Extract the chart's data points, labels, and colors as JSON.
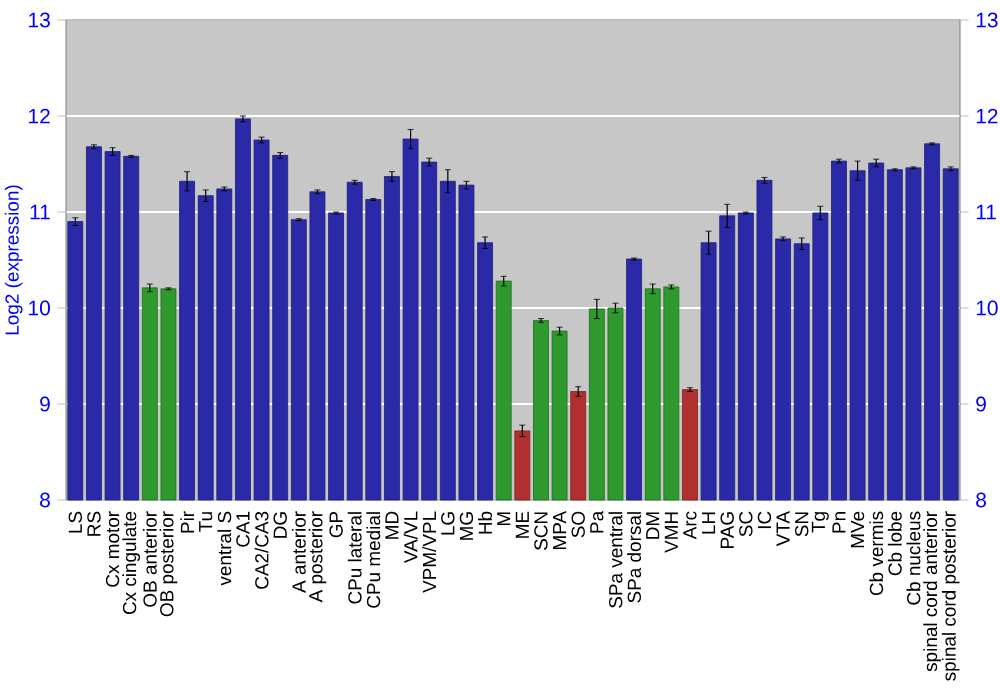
{
  "chart_data": {
    "type": "bar",
    "ylabel": "Log2 (expression)",
    "categories": [
      "LS",
      "RS",
      "Cx motor",
      "Cx cingulate",
      "OB anterior",
      "OB posterior",
      "Pir",
      "Tu",
      "ventral S",
      "CA1",
      "CA2/CA3",
      "DG",
      "A anterior",
      "A posterior",
      "GP",
      "CPu lateral",
      "CPu medial",
      "MD",
      "VA/VL",
      "VPM/VPL",
      "LG",
      "MG",
      "Hb",
      "M",
      "ME",
      "SCN",
      "MPA",
      "SO",
      "Pa",
      "SPa ventral",
      "SPa dorsal",
      "DM",
      "VMH",
      "Arc",
      "LH",
      "PAG",
      "SC",
      "IC",
      "VTA",
      "SN",
      "Tg",
      "Pn",
      "MVe",
      "Cb vermis",
      "Cb lobe",
      "Cb nucleus",
      "spinal cord anterior",
      "spinal cord posterior"
    ],
    "values": [
      10.9,
      11.68,
      11.63,
      11.58,
      10.21,
      10.2,
      11.32,
      11.17,
      11.24,
      11.97,
      11.75,
      11.59,
      10.92,
      11.21,
      10.99,
      11.31,
      11.13,
      11.37,
      11.76,
      11.52,
      11.32,
      11.28,
      10.68,
      10.28,
      8.72,
      9.87,
      9.76,
      9.13,
      9.99,
      10.0,
      10.51,
      10.2,
      10.22,
      9.15,
      10.68,
      10.96,
      10.99,
      11.33,
      10.72,
      10.67,
      10.99,
      11.53,
      11.43,
      11.51,
      11.44,
      11.46,
      11.71,
      11.45
    ],
    "errors": [
      0.04,
      0.02,
      0.04,
      0.01,
      0.04,
      0.01,
      0.1,
      0.06,
      0.02,
      0.03,
      0.03,
      0.03,
      0.01,
      0.02,
      0.01,
      0.02,
      0.01,
      0.05,
      0.1,
      0.04,
      0.12,
      0.04,
      0.06,
      0.05,
      0.06,
      0.02,
      0.04,
      0.05,
      0.1,
      0.05,
      0.01,
      0.05,
      0.02,
      0.02,
      0.12,
      0.12,
      0.01,
      0.03,
      0.02,
      0.06,
      0.07,
      0.02,
      0.1,
      0.04,
      0.01,
      0.01,
      0.01,
      0.02
    ],
    "colors": [
      "#2a2aa8",
      "#2a2aa8",
      "#2a2aa8",
      "#2a2aa8",
      "#2e9a2e",
      "#2e9a2e",
      "#2a2aa8",
      "#2a2aa8",
      "#2a2aa8",
      "#2a2aa8",
      "#2a2aa8",
      "#2a2aa8",
      "#2a2aa8",
      "#2a2aa8",
      "#2a2aa8",
      "#2a2aa8",
      "#2a2aa8",
      "#2a2aa8",
      "#2a2aa8",
      "#2a2aa8",
      "#2a2aa8",
      "#2a2aa8",
      "#2a2aa8",
      "#2e9a2e",
      "#b03030",
      "#2e9a2e",
      "#2e9a2e",
      "#b03030",
      "#2e9a2e",
      "#2e9a2e",
      "#2a2aa8",
      "#2e9a2e",
      "#2e9a2e",
      "#b03030",
      "#2a2aa8",
      "#2a2aa8",
      "#2a2aa8",
      "#2a2aa8",
      "#2a2aa8",
      "#2a2aa8",
      "#2a2aa8",
      "#2a2aa8",
      "#2a2aa8",
      "#2a2aa8",
      "#2a2aa8",
      "#2a2aa8",
      "#2a2aa8",
      "#2a2aa8"
    ],
    "ylim": [
      8,
      13
    ],
    "yticks": [
      8,
      9,
      10,
      11,
      12,
      13
    ],
    "y2lim": [
      8,
      13
    ],
    "y2ticks": [
      8,
      9,
      10,
      11,
      12,
      13
    ],
    "grid": "y"
  }
}
